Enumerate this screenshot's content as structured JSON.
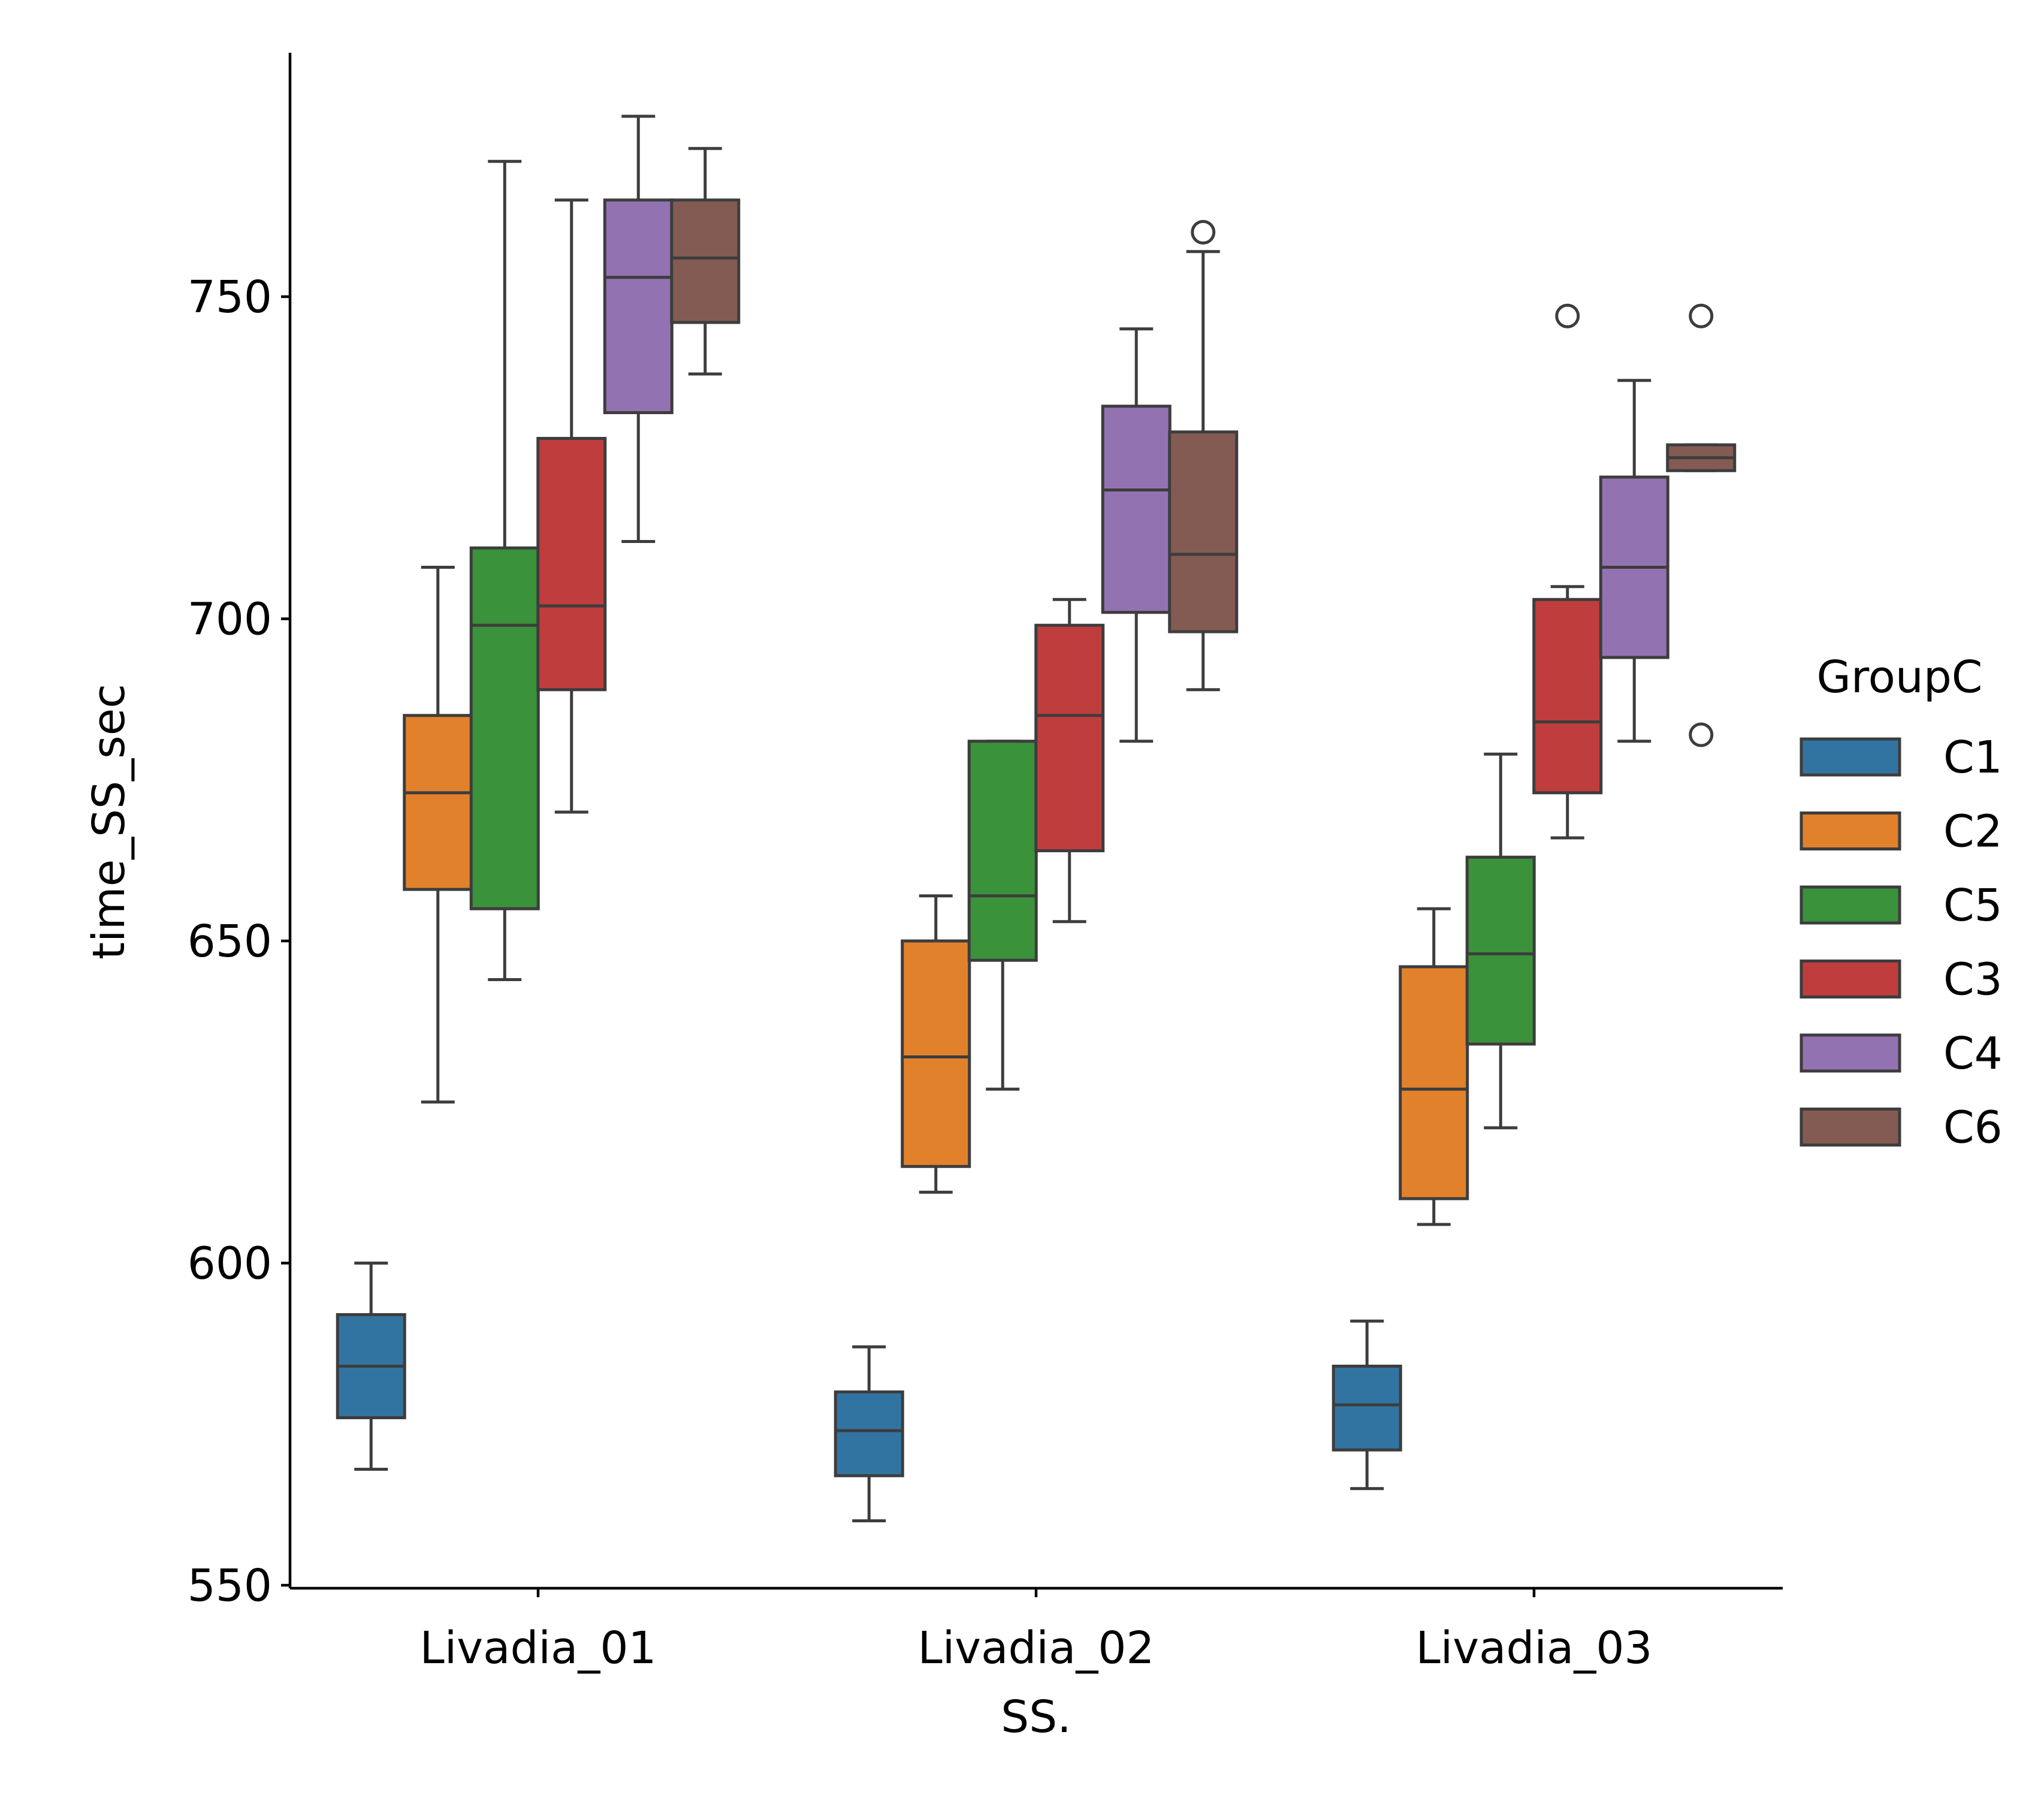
{
  "chart_data": {
    "type": "boxplot",
    "xlabel": "SS.",
    "ylabel": "time_SS_sec",
    "ylim": [
      548,
      786
    ],
    "yticks": [
      550,
      600,
      650,
      700,
      750
    ],
    "categories": [
      "Livadia_01",
      "Livadia_02",
      "Livadia_03"
    ],
    "legend": {
      "title": "GroupC",
      "position": "right"
    },
    "series": [
      {
        "name": "C1",
        "color": "#3274a1",
        "boxes": [
          {
            "whisker_low": 568,
            "q1": 576,
            "median": 584,
            "q3": 592,
            "whisker_high": 600,
            "outliers": []
          },
          {
            "whisker_low": 560,
            "q1": 567,
            "median": 574,
            "q3": 580,
            "whisker_high": 587,
            "outliers": []
          },
          {
            "whisker_low": 565,
            "q1": 571,
            "median": 578,
            "q3": 584,
            "whisker_high": 591,
            "outliers": []
          }
        ]
      },
      {
        "name": "C2",
        "color": "#e1812c",
        "boxes": [
          {
            "whisker_low": 625,
            "q1": 658,
            "median": 673,
            "q3": 685,
            "whisker_high": 708,
            "outliers": []
          },
          {
            "whisker_low": 611,
            "q1": 615,
            "median": 632,
            "q3": 650,
            "whisker_high": 657,
            "outliers": []
          },
          {
            "whisker_low": 606,
            "q1": 610,
            "median": 627,
            "q3": 646,
            "whisker_high": 655,
            "outliers": []
          }
        ]
      },
      {
        "name": "C5",
        "color": "#3a923a",
        "boxes": [
          {
            "whisker_low": 644,
            "q1": 655,
            "median": 699,
            "q3": 711,
            "whisker_high": 771,
            "outliers": []
          },
          {
            "whisker_low": 627,
            "q1": 647,
            "median": 657,
            "q3": 681,
            "whisker_high": 681,
            "outliers": []
          },
          {
            "whisker_low": 621,
            "q1": 634,
            "median": 648,
            "q3": 663,
            "whisker_high": 679,
            "outliers": []
          }
        ]
      },
      {
        "name": "C3",
        "color": "#c03d3e",
        "boxes": [
          {
            "whisker_low": 670,
            "q1": 689,
            "median": 702,
            "q3": 728,
            "whisker_high": 765,
            "outliers": []
          },
          {
            "whisker_low": 653,
            "q1": 664,
            "median": 685,
            "q3": 699,
            "whisker_high": 703,
            "outliers": []
          },
          {
            "whisker_low": 666,
            "q1": 673,
            "median": 684,
            "q3": 703,
            "whisker_high": 705,
            "outliers": [
              747
            ]
          }
        ]
      },
      {
        "name": "C4",
        "color": "#9372b2",
        "boxes": [
          {
            "whisker_low": 712,
            "q1": 732,
            "median": 753,
            "q3": 765,
            "whisker_high": 778,
            "outliers": []
          },
          {
            "whisker_low": 681,
            "q1": 701,
            "median": 720,
            "q3": 733,
            "whisker_high": 745,
            "outliers": []
          },
          {
            "whisker_low": 681,
            "q1": 694,
            "median": 708,
            "q3": 722,
            "whisker_high": 737,
            "outliers": []
          }
        ]
      },
      {
        "name": "C6",
        "color": "#845b53",
        "boxes": [
          {
            "whisker_low": 738,
            "q1": 746,
            "median": 756,
            "q3": 765,
            "whisker_high": 773,
            "outliers": []
          },
          {
            "whisker_low": 689,
            "q1": 698,
            "median": 710,
            "q3": 729,
            "whisker_high": 757,
            "outliers": [
              760
            ]
          },
          {
            "whisker_low": 723,
            "q1": 723,
            "median": 725,
            "q3": 727,
            "whisker_high": 727,
            "outliers": [
              747,
              682
            ]
          }
        ]
      }
    ]
  }
}
